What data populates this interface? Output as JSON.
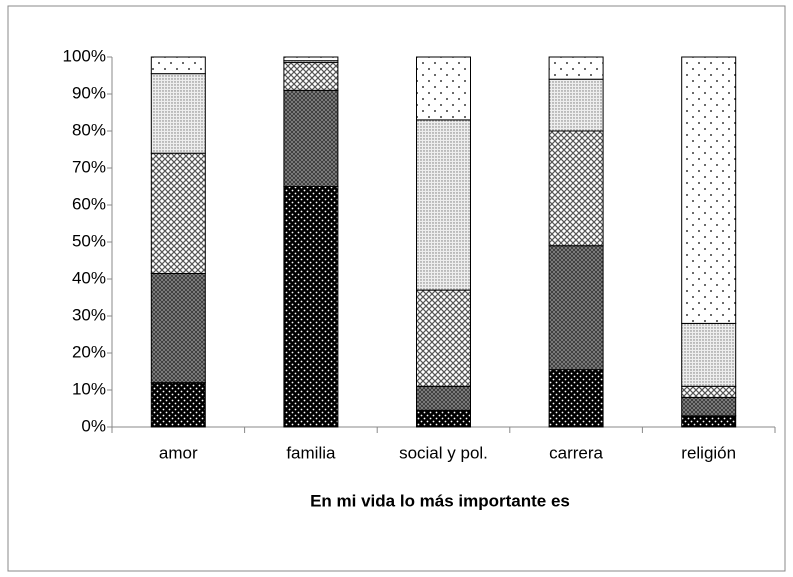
{
  "chart_data": {
    "type": "stacked_bar_percent",
    "x_label": "En mi vida lo más importante es",
    "categories": [
      "amor",
      "familia",
      "social y pol.",
      "carrera",
      "religión"
    ],
    "series": [
      {
        "pattern": "dark-dots",
        "values": [
          12,
          65,
          4.5,
          15.5,
          3
        ]
      },
      {
        "pattern": "dark-crosshatch",
        "values": [
          29.5,
          26,
          6.5,
          33.5,
          5
        ]
      },
      {
        "pattern": "light-lattice",
        "values": [
          32.5,
          7.5,
          26,
          31,
          3
        ]
      },
      {
        "pattern": "fine-dots",
        "values": [
          21.5,
          0.5,
          46,
          14,
          17
        ]
      },
      {
        "pattern": "sparse-dots",
        "values": [
          4.5,
          1,
          17,
          6,
          72
        ]
      }
    ],
    "ylim": [
      0,
      100
    ],
    "yticks": [
      {
        "value": 0,
        "label": "0%"
      },
      {
        "value": 10,
        "label": "10%"
      },
      {
        "value": 20,
        "label": "20%"
      },
      {
        "value": 30,
        "label": "30%"
      },
      {
        "value": 40,
        "label": "40%"
      },
      {
        "value": 50,
        "label": "50%"
      },
      {
        "value": 60,
        "label": "60%"
      },
      {
        "value": 70,
        "label": "70%"
      },
      {
        "value": 80,
        "label": "80%"
      },
      {
        "value": 90,
        "label": "90%"
      },
      {
        "value": 100,
        "label": "100%"
      }
    ],
    "grid": false
  }
}
